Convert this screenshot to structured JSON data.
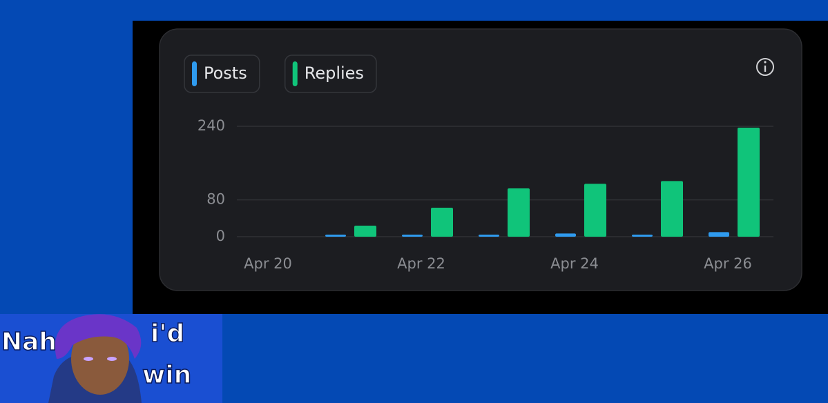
{
  "chart_data": {
    "type": "bar",
    "categories": [
      "Apr 20",
      null,
      "Apr 22",
      null,
      "Apr 24",
      null,
      "Apr 26"
    ],
    "series": [
      {
        "name": "Posts",
        "color": "#2f9bef",
        "values": [
          0,
          1,
          2,
          4,
          7,
          2,
          10
        ]
      },
      {
        "name": "Replies",
        "color": "#10c47a",
        "values": [
          0,
          24,
          63,
          105,
          115,
          121,
          237
        ]
      }
    ],
    "ylim": [
      0,
      240
    ],
    "yticks": [
      0,
      80,
      240
    ],
    "grid": true
  },
  "meme": {
    "left": "Nah",
    "right_top": "i'd",
    "right_bottom": "win"
  }
}
